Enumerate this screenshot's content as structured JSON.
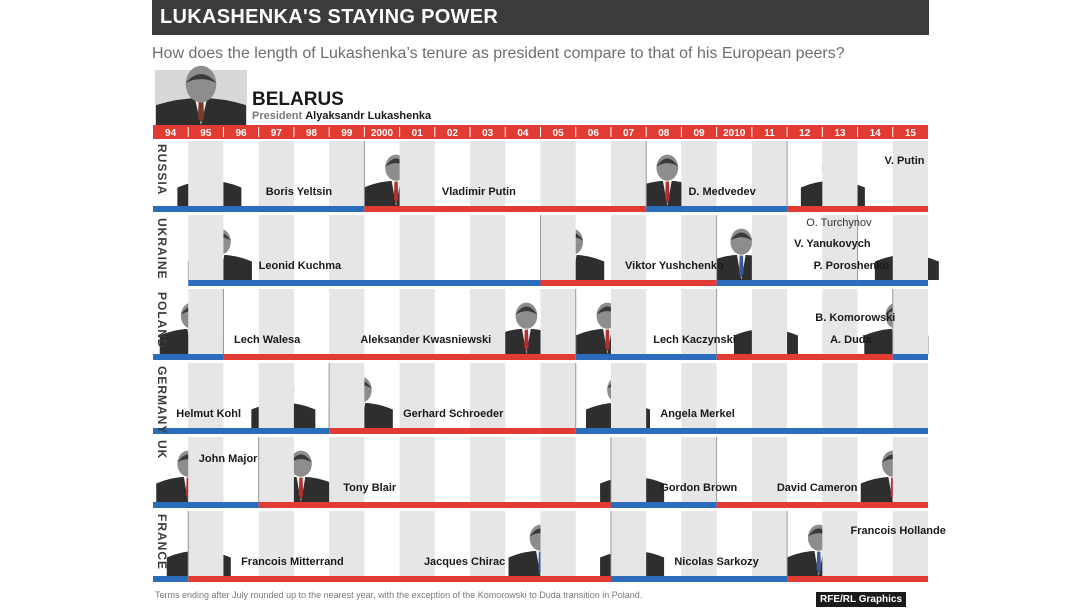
{
  "title": "LUKASHENKA'S STAYING POWER",
  "subtitle": "How does the length of Lukashenka’s tenure as president compare to that of his European peers?",
  "header_country": "BELARUS",
  "header_role": "President",
  "header_name": "Alyaksandr Lukashenka",
  "colors": {
    "blue": "#2a6ebb",
    "red": "#e23b33",
    "stripe": "#e6e6e6",
    "dark": "#3b3b3b"
  },
  "footnote": "Terms ending after July rounded up to the nearest year, with the exception of the Komorowski to Duda transition in Poland.",
  "credit": "RFE/RL Graphics",
  "chart_data": {
    "type": "timeline",
    "x_start": 1994,
    "x_end": 2016,
    "year_labels": [
      "94",
      "95",
      "96",
      "97",
      "98",
      "99",
      "2000",
      "01",
      "02",
      "03",
      "04",
      "05",
      "06",
      "07",
      "08",
      "09",
      "2010",
      "11",
      "12",
      "13",
      "14",
      "15"
    ],
    "countries": [
      {
        "name": "RUSSIA",
        "leaders": [
          {
            "name": "Boris Yeltsin",
            "start": 1994,
            "end": 2000
          },
          {
            "name": "Vladimir Putin",
            "start": 2000,
            "end": 2008
          },
          {
            "name": "D. Medvedev",
            "start": 2008,
            "end": 2012
          },
          {
            "name": "V. Putin",
            "start": 2012,
            "end": 2016
          }
        ]
      },
      {
        "name": "UKRAINE",
        "leaders": [
          {
            "name": "Leonid Kuchma",
            "start": 1995,
            "end": 2005
          },
          {
            "name": "Viktor Yushchenko",
            "start": 2005,
            "end": 2010
          },
          {
            "name": "V. Yanukovych",
            "start": 2010,
            "end": 2014
          },
          {
            "name": "O. Turchynov",
            "start": 2014,
            "end": 2014
          },
          {
            "name": "P. Poroshenko",
            "start": 2014,
            "end": 2016
          }
        ]
      },
      {
        "name": "POLAND",
        "leaders": [
          {
            "name": "Lech Walesa",
            "start": 1994,
            "end": 1996
          },
          {
            "name": "Aleksander Kwasniewski",
            "start": 1996,
            "end": 2006
          },
          {
            "name": "Lech Kaczynski",
            "start": 2006,
            "end": 2010
          },
          {
            "name": "B. Komorowski",
            "start": 2010,
            "end": 2015
          },
          {
            "name": "A. Duda",
            "start": 2015,
            "end": 2016
          }
        ]
      },
      {
        "name": "GERMANY",
        "leaders": [
          {
            "name": "Helmut Kohl",
            "start": 1994,
            "end": 1999
          },
          {
            "name": "Gerhard Schroeder",
            "start": 1999,
            "end": 2006
          },
          {
            "name": "Angela Merkel",
            "start": 2006,
            "end": 2016
          }
        ]
      },
      {
        "name": "UK",
        "leaders": [
          {
            "name": "John Major",
            "start": 1994,
            "end": 1997
          },
          {
            "name": "Tony Blair",
            "start": 1997,
            "end": 2007
          },
          {
            "name": "Gordon Brown",
            "start": 2007,
            "end": 2010
          },
          {
            "name": "David Cameron",
            "start": 2010,
            "end": 2016
          }
        ]
      },
      {
        "name": "FRANCE",
        "leaders": [
          {
            "name": "Francois Mitterrand",
            "start": 1994,
            "end": 1995
          },
          {
            "name": "Jacques Chirac",
            "start": 1995,
            "end": 2007
          },
          {
            "name": "Nicolas Sarkozy",
            "start": 2007,
            "end": 2012
          },
          {
            "name": "Francois Hollande",
            "start": 2012,
            "end": 2016
          }
        ]
      }
    ]
  }
}
